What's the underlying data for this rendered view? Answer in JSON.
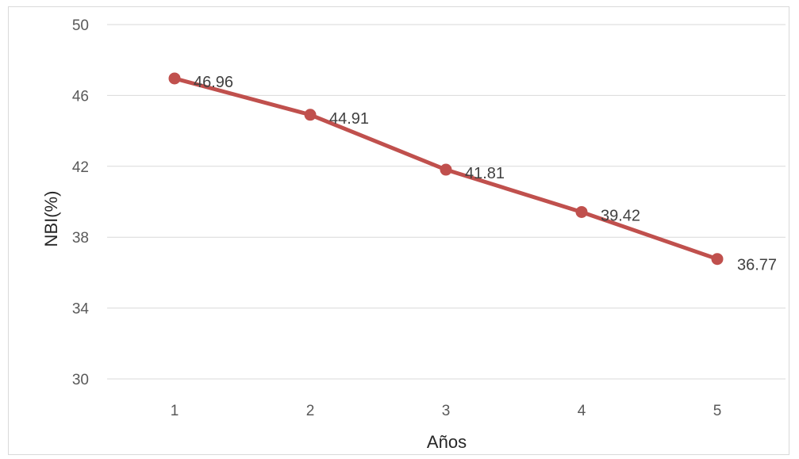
{
  "chart_data": {
    "type": "line",
    "title": "",
    "xlabel": "Años",
    "ylabel": "NBI(%)",
    "categories": [
      "1",
      "2",
      "3",
      "4",
      "5"
    ],
    "series": [
      {
        "values": [
          46.96,
          44.91,
          41.81,
          39.42,
          36.77
        ],
        "data_labels": [
          "46.96",
          "44.91",
          "41.81",
          "39.42",
          "36.77"
        ],
        "color": "#C0504D"
      }
    ],
    "ylim": [
      30,
      50
    ],
    "yticks": [
      "30",
      "34",
      "38",
      "42",
      "46",
      "50"
    ],
    "grid": true,
    "legend": "none"
  }
}
